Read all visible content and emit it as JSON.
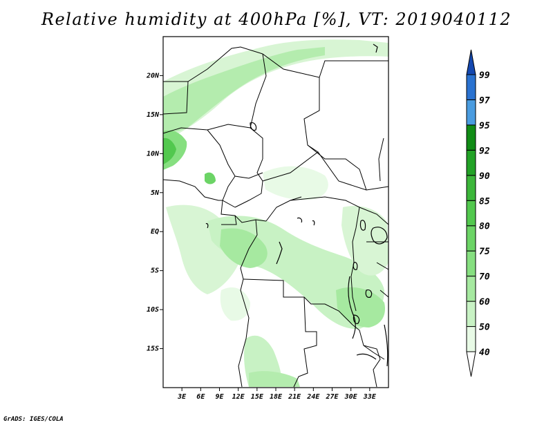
{
  "title": "Relative humidity at 400hPa [%], VT: 2019040112",
  "credit": "GrADS: IGES/COLA",
  "map": {
    "lon_range": [
      0,
      36
    ],
    "lat_range": [
      -20,
      25
    ],
    "lat_ticks": [
      "20N",
      "15N",
      "10N",
      "5N",
      "EQ",
      "5S",
      "10S",
      "15S"
    ],
    "lat_values": [
      20,
      15,
      10,
      5,
      0,
      -5,
      -10,
      -15
    ],
    "lon_ticks": [
      "3E",
      "6E",
      "9E",
      "12E",
      "15E",
      "18E",
      "21E",
      "24E",
      "27E",
      "30E",
      "33E"
    ],
    "lon_values": [
      3,
      6,
      9,
      12,
      15,
      18,
      21,
      24,
      27,
      30,
      33
    ]
  },
  "colorbar": {
    "levels": [
      "40",
      "50",
      "60",
      "70",
      "75",
      "80",
      "85",
      "90",
      "92",
      "95",
      "97",
      "99"
    ],
    "colors": [
      "#ffffff",
      "#e8fae6",
      "#c8f2c4",
      "#a6e9a0",
      "#86df80",
      "#6cd466",
      "#52c84e",
      "#3cb63a",
      "#22a226",
      "#118c16",
      "#4a9ce0",
      "#2a72d0",
      "#1448b0"
    ]
  },
  "colors": {
    "border": "#000000",
    "background": "#ffffff"
  }
}
